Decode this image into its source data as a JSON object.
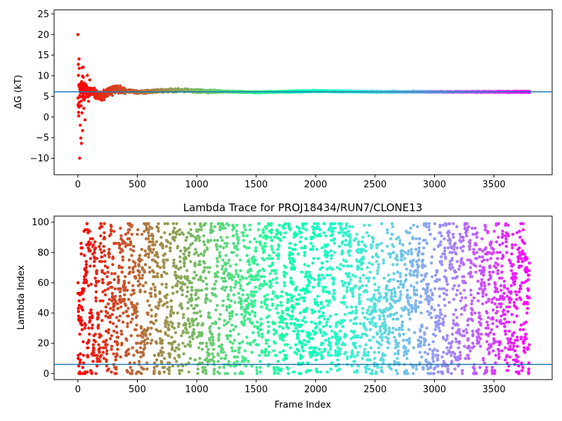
{
  "chart_data": [
    {
      "type": "scatter",
      "panel": "top",
      "title": "",
      "xlabel": "",
      "ylabel": "ΔG (kT)",
      "xlim": [
        -200,
        3990
      ],
      "ylim": [
        -14,
        26
      ],
      "xticks": [
        0,
        500,
        1000,
        1500,
        2000,
        2500,
        3000,
        3500
      ],
      "yticks": [
        -10,
        -5,
        0,
        5,
        10,
        15,
        20,
        25
      ],
      "colormap": "rainbow",
      "n_frames": 3800,
      "reference_line": {
        "y": 6.1,
        "color": "#1f77b4"
      },
      "series_description": "running free energy estimate per frame; large scatter for first ~150 frames, then converges to ~6.1",
      "sample_points": [
        [
          0,
          20.0
        ],
        [
          5,
          10.1
        ],
        [
          10,
          14.1
        ],
        [
          15,
          -10.0
        ],
        [
          20,
          -2.0
        ],
        [
          25,
          -5.1
        ],
        [
          30,
          -6.4
        ],
        [
          35,
          1.0
        ],
        [
          40,
          -3.3
        ],
        [
          45,
          12.1
        ],
        [
          50,
          2.1
        ],
        [
          60,
          -0.7
        ],
        [
          70,
          7.8
        ],
        [
          80,
          10.1
        ],
        [
          90,
          3.8
        ],
        [
          100,
          9.0
        ],
        [
          120,
          4.8
        ],
        [
          150,
          5.5
        ],
        [
          200,
          5.0
        ],
        [
          300,
          6.9
        ],
        [
          500,
          6.0
        ],
        [
          800,
          6.5
        ],
        [
          1000,
          6.3
        ],
        [
          1500,
          6.0
        ],
        [
          2000,
          6.3
        ],
        [
          2500,
          6.1
        ],
        [
          3000,
          6.1
        ],
        [
          3500,
          6.1
        ],
        [
          3800,
          6.1
        ]
      ]
    },
    {
      "type": "scatter",
      "panel": "bottom",
      "title": "Lambda Trace for PROJ18434/RUN7/CLONE13",
      "xlabel": "Frame Index",
      "ylabel": "Lambda Index",
      "xlim": [
        -200,
        3990
      ],
      "ylim": [
        -4,
        104
      ],
      "xticks": [
        0,
        500,
        1000,
        1500,
        2000,
        2500,
        3000,
        3500
      ],
      "yticks": [
        0,
        20,
        40,
        60,
        80,
        100
      ],
      "colormap": "rainbow",
      "n_frames": 3800,
      "lambda_range": [
        0,
        99
      ],
      "reference_line": {
        "y": 6,
        "color": "#1f77b4"
      },
      "series_description": "lambda index visited at each frame (~uniform over 0-99), colored by frame index"
    }
  ]
}
